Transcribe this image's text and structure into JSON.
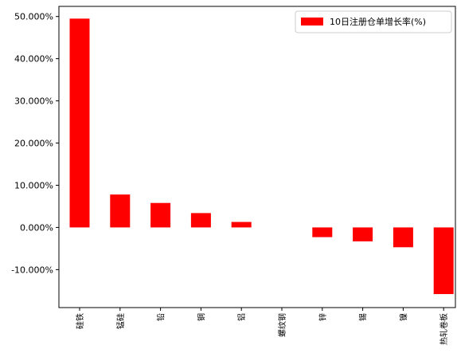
{
  "chart_data": {
    "type": "bar",
    "categories": [
      "硅铁",
      "锰硅",
      "铅",
      "铜",
      "铝",
      "螺纹钢",
      "锌",
      "锡",
      "镍",
      "热轧卷板"
    ],
    "series": [
      {
        "name": "10日注册仓单增长率(%)",
        "values": [
          49.5,
          7.8,
          5.8,
          3.4,
          1.3,
          0.0,
          -2.3,
          -3.3,
          -4.7,
          -15.8
        ],
        "color": "#ff0000"
      }
    ],
    "y_ticks": [
      -10,
      0,
      10,
      20,
      30,
      40,
      50
    ],
    "y_tick_labels": [
      "-10.000%",
      "0.000%",
      "10.000%",
      "20.000%",
      "30.000%",
      "40.000%",
      "50.000%"
    ],
    "ylim": [
      -19,
      52.4
    ],
    "grid": false,
    "legend_position": "top-right"
  }
}
